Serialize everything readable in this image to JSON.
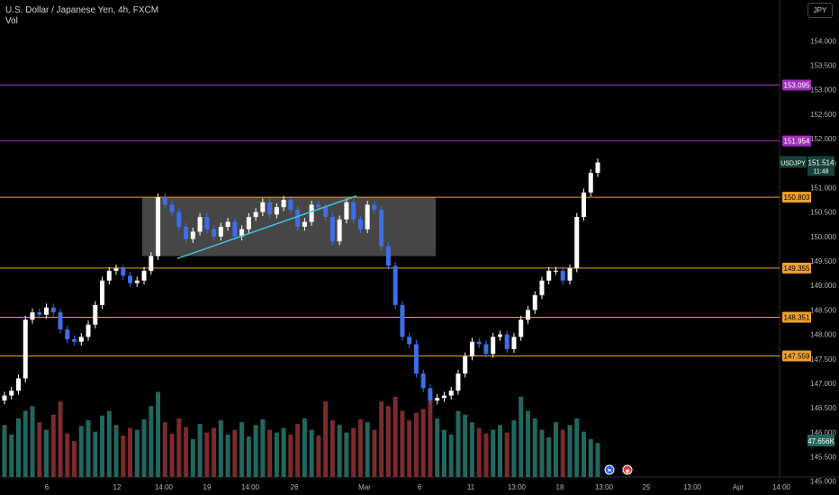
{
  "header": {
    "title": "U.S. Dollar / Japanese Yen, 4h, FXCM",
    "volume_label": "Vol",
    "currency": "JPY"
  },
  "colors": {
    "background": "#000000",
    "up": "#ffffff",
    "down": "#3d6ee8",
    "vol_up": "#22675f",
    "vol_down": "#7a2b2b",
    "level_orange": "#f0a030",
    "level_purple": "#a030b8",
    "trendline": "#3fc6d9",
    "range_box": "#5d5d5d",
    "price_badge": "#16423a"
  },
  "chart_data": {
    "type": "candlestick",
    "symbol": "USDJPY",
    "interval": "4h",
    "ylim": [
      144.7,
      154.3
    ],
    "y_ticks": [
      "154.000",
      "153.500",
      "153.000",
      "152.500",
      "152.000",
      "151.500",
      "151.000",
      "150.500",
      "150.000",
      "149.500",
      "149.000",
      "148.500",
      "148.000",
      "147.500",
      "147.000",
      "146.500",
      "146.000",
      "145.500",
      "145.000"
    ],
    "x_ticks": [
      "6",
      "12",
      "14:00",
      "19",
      "14:00",
      "26",
      "Mar",
      "6",
      "11",
      "13:00",
      "18",
      "13:00",
      "25",
      "13:00",
      "Apr",
      "14:00"
    ],
    "horizontal_levels": [
      {
        "price": 153.095,
        "label": "153.095",
        "color": "purple"
      },
      {
        "price": 151.954,
        "label": "151.954",
        "color": "purple"
      },
      {
        "price": 150.803,
        "label": "150.803",
        "color": "orange"
      },
      {
        "price": 149.355,
        "label": "149.355",
        "color": "orange"
      },
      {
        "price": 148.351,
        "label": "148.351",
        "color": "orange"
      },
      {
        "price": 147.559,
        "label": "147.559",
        "color": "orange"
      }
    ],
    "range_box": {
      "top": 150.8,
      "bottom": 149.6
    },
    "trendline": {
      "from_price": 149.55,
      "to_price": 150.83
    },
    "last_price": {
      "symbol": "USDJPY",
      "value": "151.514",
      "countdown": "11:48"
    },
    "volume_label": "47.656K",
    "price_path": [
      146.75,
      146.85,
      147.1,
      148.3,
      148.45,
      148.4,
      148.55,
      148.45,
      148.1,
      147.9,
      147.85,
      147.95,
      148.2,
      148.6,
      149.1,
      149.3,
      149.35,
      149.2,
      149.05,
      149.1,
      149.3,
      149.6,
      150.8,
      150.65,
      150.5,
      150.2,
      149.95,
      150.1,
      150.4,
      150.15,
      150.0,
      150.2,
      150.3,
      150.0,
      150.15,
      150.4,
      150.5,
      150.7,
      150.45,
      150.6,
      150.75,
      150.55,
      150.2,
      150.3,
      150.65,
      150.6,
      150.4,
      149.9,
      150.35,
      150.7,
      150.35,
      150.15,
      150.65,
      150.55,
      149.8,
      149.4,
      148.6,
      147.95,
      147.8,
      147.2,
      146.9,
      146.65,
      146.7,
      146.75,
      146.85,
      147.2,
      147.55,
      147.85,
      147.8,
      147.6,
      147.95,
      148.0,
      147.7,
      147.95,
      148.3,
      148.5,
      148.8,
      149.1,
      149.3,
      149.3,
      149.1,
      149.35,
      150.4,
      150.9,
      151.3,
      151.514
    ],
    "volumes": [
      0.55,
      0.45,
      0.62,
      0.7,
      0.75,
      0.58,
      0.5,
      0.66,
      0.8,
      0.46,
      0.38,
      0.54,
      0.6,
      0.48,
      0.65,
      0.7,
      0.55,
      0.44,
      0.52,
      0.5,
      0.61,
      0.75,
      0.9,
      0.58,
      0.46,
      0.62,
      0.53,
      0.4,
      0.56,
      0.47,
      0.52,
      0.6,
      0.45,
      0.5,
      0.58,
      0.43,
      0.55,
      0.61,
      0.5,
      0.47,
      0.52,
      0.45,
      0.56,
      0.62,
      0.5,
      0.44,
      0.8,
      0.6,
      0.55,
      0.47,
      0.52,
      0.61,
      0.58,
      0.5,
      0.8,
      0.75,
      0.85,
      0.7,
      0.6,
      0.68,
      0.72,
      0.85,
      0.62,
      0.5,
      0.45,
      0.7,
      0.66,
      0.58,
      0.52,
      0.46,
      0.5,
      0.55,
      0.47,
      0.6,
      0.85,
      0.7,
      0.62,
      0.5,
      0.42,
      0.58,
      0.5,
      0.55,
      0.62,
      0.48,
      0.4,
      0.36
    ]
  },
  "markers": [
    {
      "name": "flag-event-icon",
      "glyph": "⚑"
    },
    {
      "name": "dividend-event-icon",
      "glyph": "◉"
    }
  ]
}
